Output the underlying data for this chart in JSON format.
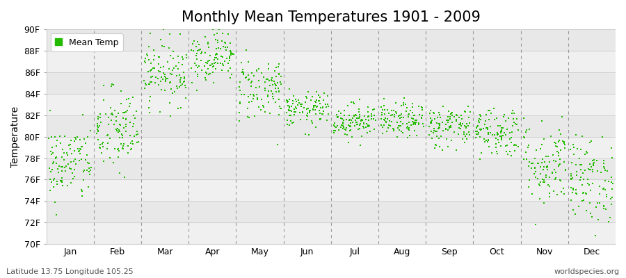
{
  "title": "Monthly Mean Temperatures 1901 - 2009",
  "ylabel": "Temperature",
  "xlabel_labels": [
    "Jan",
    "Feb",
    "Mar",
    "Apr",
    "May",
    "Jun",
    "Jul",
    "Aug",
    "Sep",
    "Oct",
    "Nov",
    "Dec"
  ],
  "ytick_labels": [
    "70F",
    "72F",
    "74F",
    "76F",
    "78F",
    "80F",
    "82F",
    "84F",
    "86F",
    "88F",
    "90F"
  ],
  "ytick_values": [
    70,
    72,
    74,
    76,
    78,
    80,
    82,
    84,
    86,
    88,
    90
  ],
  "ylim": [
    70,
    90
  ],
  "dot_color": "#22bb00",
  "dot_size": 3,
  "background_color": "#ffffff",
  "plot_bg_color": "#ffffff",
  "band_color_light": "#f0f0f0",
  "band_color_dark": "#e8e8e8",
  "grid_color": "#cccccc",
  "dashed_line_color": "#999999",
  "legend_label": "Mean Temp",
  "footer_left": "Latitude 13.75 Longitude 105.25",
  "footer_right": "worldspecies.org",
  "title_fontsize": 15,
  "label_fontsize": 10,
  "tick_fontsize": 9,
  "footer_fontsize": 8,
  "years": 109,
  "monthly_means": [
    77.5,
    80.5,
    86.0,
    87.5,
    84.5,
    82.5,
    81.5,
    81.5,
    81.0,
    80.5,
    77.5,
    76.0
  ],
  "monthly_stds": [
    1.8,
    2.0,
    1.5,
    1.2,
    1.5,
    0.8,
    0.8,
    0.8,
    1.0,
    1.2,
    2.0,
    2.0
  ]
}
